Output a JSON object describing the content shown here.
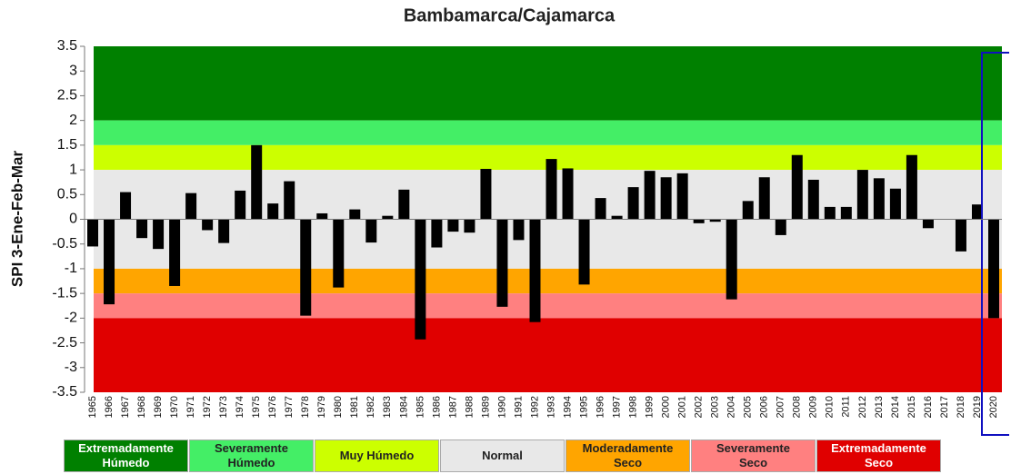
{
  "chart_data": {
    "type": "bar",
    "title": "Bambamarca/Cajamarca",
    "y_label": "SPI 3-Ene-Feb-Mar",
    "categories": [
      "1965",
      "1966",
      "1967",
      "1968",
      "1969",
      "1970",
      "1971",
      "1972",
      "1973",
      "1974",
      "1975",
      "1976",
      "1977",
      "1978",
      "1979",
      "1980",
      "1981",
      "1982",
      "1983",
      "1984",
      "1985",
      "1986",
      "1987",
      "1988",
      "1989",
      "1990",
      "1991",
      "1992",
      "1993",
      "1994",
      "1995",
      "1996",
      "1997",
      "1998",
      "1999",
      "2000",
      "2001",
      "2002",
      "2003",
      "2004",
      "2005",
      "2006",
      "2007",
      "2008",
      "2009",
      "2010",
      "2011",
      "2012",
      "2013",
      "2014",
      "2015",
      "2016",
      "2017",
      "2018",
      "2019",
      "2020"
    ],
    "values": [
      -0.55,
      -1.72,
      0.55,
      -0.38,
      -0.6,
      -1.35,
      0.53,
      -0.22,
      -0.48,
      0.58,
      1.5,
      0.32,
      0.77,
      -1.95,
      0.12,
      -1.38,
      0.2,
      -0.47,
      0.07,
      0.6,
      -2.43,
      -0.57,
      -0.25,
      -0.27,
      1.02,
      -1.77,
      -0.42,
      -2.08,
      1.22,
      1.03,
      -1.32,
      0.43,
      0.07,
      0.65,
      0.98,
      0.85,
      0.93,
      -0.08,
      -0.05,
      -1.62,
      0.37,
      0.85,
      -0.32,
      1.3,
      0.8,
      0.25,
      0.25,
      1.0,
      0.83,
      0.62,
      1.3,
      -0.18,
      0,
      -0.65,
      0.3,
      -2.0
    ],
    "color": "#000000",
    "ylim": [
      -3.5,
      3.5
    ],
    "yticks": [
      3.5,
      3,
      2.5,
      2,
      1.5,
      1,
      0.5,
      0,
      -0.5,
      -1,
      -1.5,
      -2,
      -2.5,
      -3,
      -3.5
    ],
    "bands": [
      {
        "label": "Extremadamente Húmedo",
        "from": 2,
        "to": 3.5,
        "color": "#008000"
      },
      {
        "label": "Severamente Húmedo",
        "from": 1.5,
        "to": 2,
        "color": "#44ee66"
      },
      {
        "label": "Muy Húmedo",
        "from": 1,
        "to": 1.5,
        "color": "#ccff00"
      },
      {
        "label": "Normal",
        "from": -1,
        "to": 1,
        "color": "#e8e8e8"
      },
      {
        "label": "Moderadamente Seco",
        "from": -1.5,
        "to": -1,
        "color": "#ffa500"
      },
      {
        "label": "Severamente Seco",
        "from": -2,
        "to": -1.5,
        "color": "#ff8080"
      },
      {
        "label": "Extremadamente Seco",
        "from": -3.5,
        "to": -2,
        "color": "#e00000"
      }
    ]
  }
}
